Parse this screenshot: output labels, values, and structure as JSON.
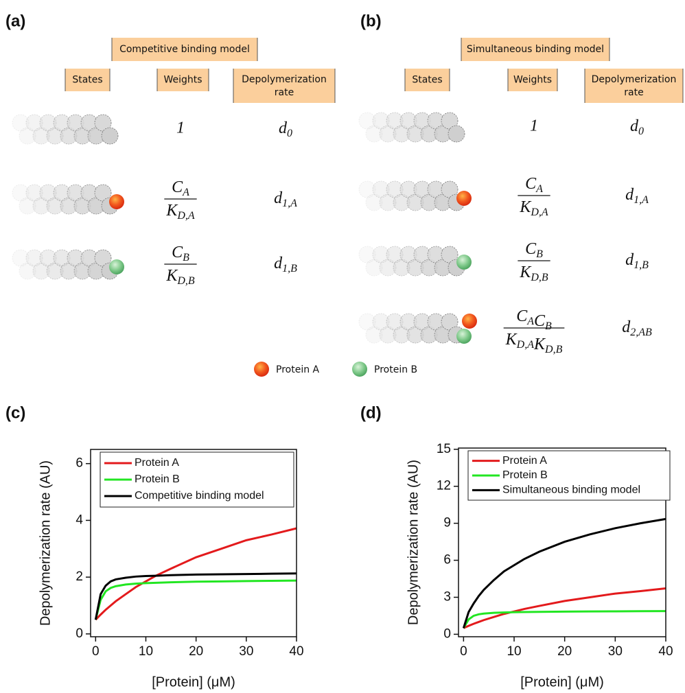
{
  "panels": {
    "a": {
      "label": "(a)",
      "title": "Competitive binding model",
      "headers": [
        "States",
        "Weights",
        "Depolymerization rate"
      ],
      "rows": [
        {
          "weight": "1",
          "rate": {
            "base": "d",
            "sub": "0"
          }
        },
        {
          "weight": {
            "num": [
              {
                "base": "C",
                "sub": "A"
              }
            ],
            "den": [
              {
                "base": "K",
                "sub": "D,A"
              }
            ]
          },
          "rate": {
            "base": "d",
            "sub": "1,A"
          }
        },
        {
          "weight": {
            "num": [
              {
                "base": "C",
                "sub": "B"
              }
            ],
            "den": [
              {
                "base": "K",
                "sub": "D,B"
              }
            ]
          },
          "rate": {
            "base": "d",
            "sub": "1,B"
          }
        }
      ]
    },
    "b": {
      "label": "(b)",
      "title": "Simultaneous binding model",
      "headers": [
        "States",
        "Weights",
        "Depolymerization rate"
      ],
      "rows": [
        {
          "weight": "1",
          "rate": {
            "base": "d",
            "sub": "0"
          }
        },
        {
          "weight": {
            "num": [
              {
                "base": "C",
                "sub": "A"
              }
            ],
            "den": [
              {
                "base": "K",
                "sub": "D,A"
              }
            ]
          },
          "rate": {
            "base": "d",
            "sub": "1,A"
          }
        },
        {
          "weight": {
            "num": [
              {
                "base": "C",
                "sub": "B"
              }
            ],
            "den": [
              {
                "base": "K",
                "sub": "D,B"
              }
            ]
          },
          "rate": {
            "base": "d",
            "sub": "1,B"
          }
        },
        {
          "weight": {
            "num": [
              {
                "base": "C",
                "sub": "A"
              },
              {
                "base": "C",
                "sub": "B"
              }
            ],
            "den": [
              {
                "base": "K",
                "sub": "D,A"
              },
              {
                "base": "K",
                "sub": "D,B"
              }
            ]
          },
          "rate": {
            "base": "d",
            "sub": "2,AB"
          }
        }
      ]
    },
    "legend": [
      "Protein A",
      "Protein B"
    ]
  },
  "chart_data": [
    {
      "type": "line",
      "label": "(c)",
      "x_label": "[Protein] (μM)",
      "y_label": "Depolymerization rate (AU)",
      "x": [
        0,
        1,
        2,
        3,
        4,
        6,
        8,
        10,
        12,
        15,
        20,
        25,
        30,
        35,
        40
      ],
      "xlim": [
        -1,
        40
      ],
      "xticks": [
        0,
        10,
        20,
        30,
        40
      ],
      "ylim": [
        -0.1,
        6.5
      ],
      "yticks": [
        0,
        2,
        4,
        6
      ],
      "series": [
        {
          "name": "Protein A",
          "color": "#e31a1c",
          "values": [
            0.5,
            0.68,
            0.85,
            1.0,
            1.15,
            1.4,
            1.65,
            1.85,
            2.05,
            2.3,
            2.7,
            3.0,
            3.3,
            3.5,
            3.72
          ]
        },
        {
          "name": "Protein B",
          "color": "#22e622",
          "values": [
            0.5,
            1.2,
            1.5,
            1.62,
            1.68,
            1.74,
            1.77,
            1.79,
            1.8,
            1.82,
            1.84,
            1.85,
            1.86,
            1.87,
            1.88
          ]
        },
        {
          "name": "Competitive binding model",
          "color": "#000000",
          "values": [
            0.5,
            1.4,
            1.7,
            1.85,
            1.92,
            1.98,
            2.02,
            2.04,
            2.05,
            2.07,
            2.09,
            2.1,
            2.11,
            2.12,
            2.13
          ]
        }
      ]
    },
    {
      "type": "line",
      "label": "(d)",
      "x_label": "[Protein] (μM)",
      "y_label": "Depolymerization rate (AU)",
      "x": [
        0,
        1,
        2,
        3,
        4,
        6,
        8,
        10,
        12,
        15,
        20,
        25,
        30,
        35,
        40
      ],
      "xlim": [
        -1,
        40
      ],
      "xticks": [
        0,
        10,
        20,
        30,
        40
      ],
      "ylim": [
        -0.2,
        15.1
      ],
      "yticks": [
        0,
        3,
        6,
        9,
        12,
        15
      ],
      "series": [
        {
          "name": "Protein A",
          "color": "#e31a1c",
          "values": [
            0.5,
            0.68,
            0.85,
            1.0,
            1.15,
            1.4,
            1.65,
            1.85,
            2.05,
            2.3,
            2.7,
            3.0,
            3.3,
            3.5,
            3.72
          ]
        },
        {
          "name": "Protein B",
          "color": "#22e622",
          "values": [
            0.5,
            1.2,
            1.5,
            1.62,
            1.68,
            1.74,
            1.77,
            1.79,
            1.8,
            1.82,
            1.84,
            1.85,
            1.86,
            1.87,
            1.88
          ]
        },
        {
          "name": "Simultaneous binding model",
          "color": "#000000",
          "values": [
            0.5,
            1.8,
            2.5,
            3.1,
            3.6,
            4.4,
            5.1,
            5.6,
            6.1,
            6.7,
            7.5,
            8.1,
            8.6,
            9.0,
            9.35
          ]
        }
      ]
    }
  ]
}
